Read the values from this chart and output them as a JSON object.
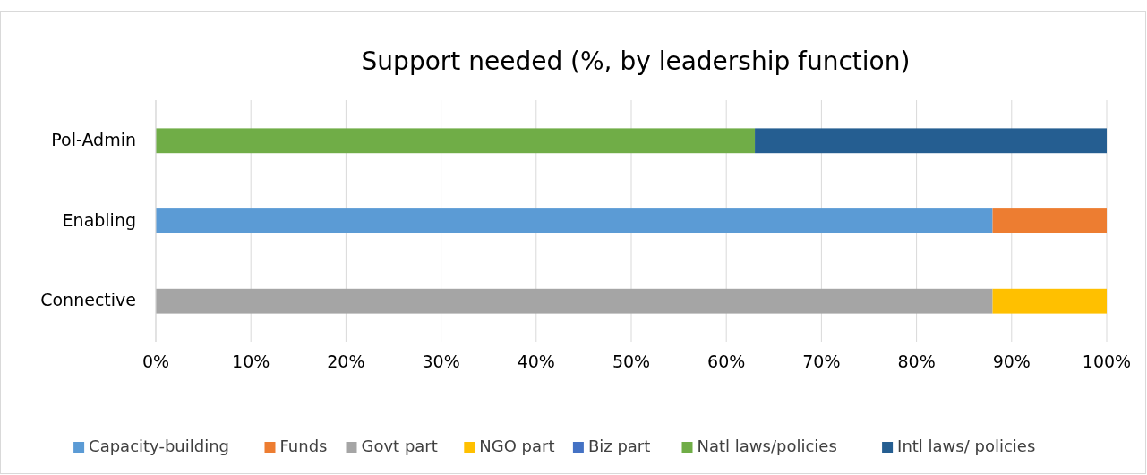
{
  "chart_data": {
    "type": "bar",
    "title": "Support needed (%, by leadership function)",
    "orientation": "horizontal",
    "stacked": true,
    "categories": [
      "Pol-Admin",
      "Enabling",
      "Connective"
    ],
    "series": [
      {
        "name": "Capacity-building",
        "color": "#5b9bd5",
        "values": [
          0,
          88,
          0
        ]
      },
      {
        "name": "Funds",
        "color": "#ed7d31",
        "values": [
          0,
          12,
          0
        ]
      },
      {
        "name": "Govt part",
        "color": "#a5a5a5",
        "values": [
          0,
          0,
          88
        ]
      },
      {
        "name": "NGO part",
        "color": "#ffc000",
        "values": [
          0,
          0,
          12
        ]
      },
      {
        "name": "Biz part",
        "color": "#4472c4",
        "values": [
          0,
          0,
          0
        ]
      },
      {
        "name": "Natl laws/policies",
        "color": "#70ad47",
        "values": [
          63,
          0,
          0
        ]
      },
      {
        "name": "Intl laws/ policies",
        "color": "#255e91",
        "values": [
          37,
          0,
          0
        ]
      }
    ],
    "xlim": [
      0,
      100
    ],
    "xticks": [
      {
        "value": 0,
        "label": "0%"
      },
      {
        "value": 10,
        "label": "10%"
      },
      {
        "value": 20,
        "label": "20%"
      },
      {
        "value": 30,
        "label": "30%"
      },
      {
        "value": 40,
        "label": "40%"
      },
      {
        "value": 50,
        "label": "50%"
      },
      {
        "value": 60,
        "label": "60%"
      },
      {
        "value": 70,
        "label": "70%"
      },
      {
        "value": 80,
        "label": "80%"
      },
      {
        "value": 90,
        "label": "90%"
      },
      {
        "value": 100,
        "label": "100%"
      }
    ],
    "grid": "x",
    "legend": "bottom"
  }
}
